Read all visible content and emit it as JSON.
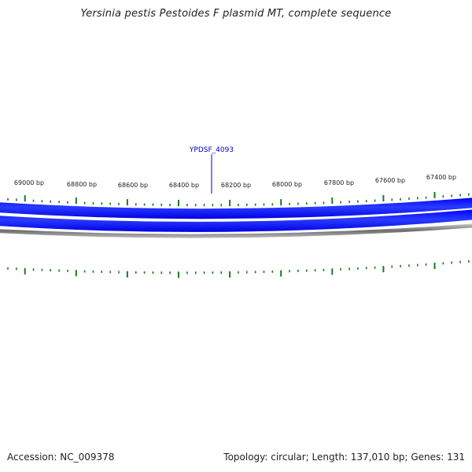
{
  "title": "Yersinia pestis Pestoides F plasmid MT, complete sequence",
  "footer": {
    "accession": "Accession: NC_009378",
    "summary": "Topology: circular; Length: 137,010 bp; Genes: 131"
  },
  "map": {
    "colors": {
      "gene_track": "#0000ff",
      "backbone": "#777777",
      "tick": "#1a7a1a",
      "label_text": "#222222",
      "gene_label": "#0000cc"
    },
    "position_labels": [
      "69000 bp",
      "68800 bp",
      "68600 bp",
      "68400 bp",
      "68200 bp",
      "68000 bp",
      "67800 bp",
      "67600 bp",
      "67400 bp"
    ],
    "gene_labels": [
      "YPDSF_4093"
    ]
  }
}
